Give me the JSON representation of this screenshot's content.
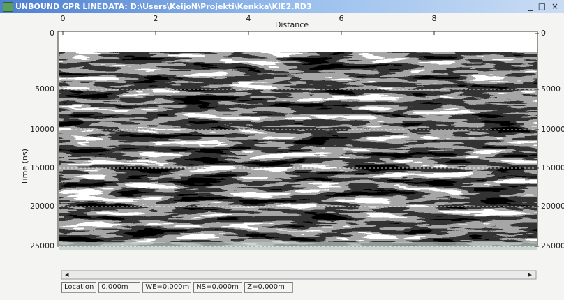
{
  "window": {
    "title": "UNBOUND GPR LINEDATA: D:\\Users\\KeijoN\\Projekti\\Kenkka\\KIE2.RD3",
    "controls": "_ □ ×"
  },
  "plot": {
    "x_label": "Distance",
    "y_label": "Time (ns)",
    "distance_ticks": [
      0,
      2,
      4,
      6,
      8
    ],
    "left_time_ticks": [
      0,
      5000,
      10000,
      15000,
      20000,
      25000
    ],
    "right_time_ticks": [
      0,
      5000,
      10000,
      15000,
      20000,
      25000
    ]
  },
  "status_bar": [
    "Location",
    "0.000m",
    "WE=0.000m",
    "NS=0.000m",
    "Z=0.000m"
  ]
}
